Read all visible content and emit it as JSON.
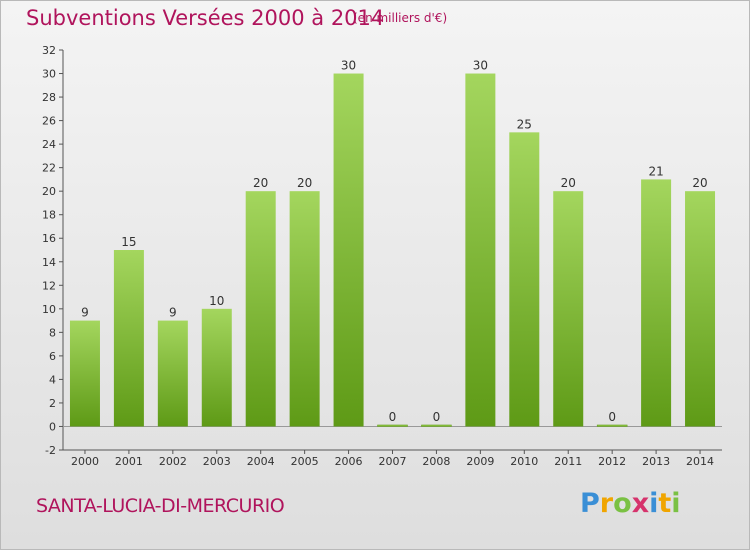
{
  "chart_data": {
    "type": "bar",
    "title": "Subventions Versées 2000 à 2014",
    "unit_note": "(en milliers d'€)",
    "categories": [
      "2000",
      "2001",
      "2002",
      "2003",
      "2004",
      "2005",
      "2006",
      "2007",
      "2008",
      "2009",
      "2010",
      "2011",
      "2012",
      "2013",
      "2014"
    ],
    "values": [
      9,
      15,
      9,
      10,
      20,
      20,
      30,
      0,
      0,
      30,
      25,
      20,
      0,
      21,
      20
    ],
    "ylim": [
      -2,
      32
    ],
    "yticks": [
      -2,
      0,
      2,
      4,
      6,
      8,
      10,
      12,
      14,
      16,
      18,
      20,
      22,
      24,
      26,
      28,
      30,
      32
    ],
    "grid": false,
    "bar_color": "#8cc63f",
    "bar_color_dark": "#5e9a16"
  },
  "footer": {
    "place_name": "SANTA-LUCIA-DI-MERCURIO",
    "brand_letters": [
      {
        "ch": "P",
        "color": "#3a8fd6"
      },
      {
        "ch": "r",
        "color": "#f0a500"
      },
      {
        "ch": "o",
        "color": "#7ac143"
      },
      {
        "ch": "x",
        "color": "#d6336c"
      },
      {
        "ch": "i",
        "color": "#3a8fd6"
      },
      {
        "ch": "t",
        "color": "#f0a500"
      },
      {
        "ch": "i",
        "color": "#7ac143"
      }
    ]
  }
}
